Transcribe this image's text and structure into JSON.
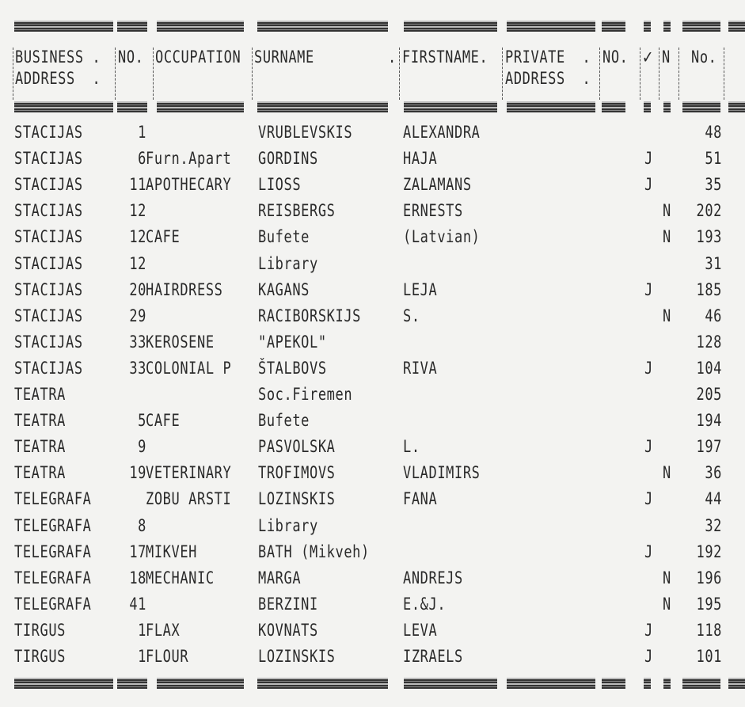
{
  "header": {
    "business_address_1": "BUSINESS .",
    "business_address_2": "ADDRESS  .",
    "no": "NO.",
    "occupation": "OCCUPATION",
    "surname": "SURNAME",
    "surname_dot": ".",
    "firstname": "FIRSTNAME.",
    "private_address_1": "PRIVATE  .",
    "private_address_2": "ADDRESS  .",
    "private_no": "NO.",
    "check_mark": "✓",
    "n": "N",
    "no2": "No."
  },
  "rows": [
    {
      "address": "STACIJAS",
      "no": "1",
      "occupation": "",
      "surname": "VRUBLEVSKIS",
      "firstname": "ALEXANDRA",
      "j": "",
      "n": "",
      "num": "48"
    },
    {
      "address": "STACIJAS",
      "no": "6",
      "occupation": "Furn.Apart",
      "surname": "GORDINS",
      "firstname": "HAJA",
      "j": "J",
      "n": "",
      "num": "51"
    },
    {
      "address": "STACIJAS",
      "no": "11",
      "occupation": "APOTHECARY",
      "surname": "LIOSS",
      "firstname": "ZALAMANS",
      "j": "J",
      "n": "",
      "num": "35"
    },
    {
      "address": "STACIJAS",
      "no": "12",
      "occupation": "",
      "surname": "REISBERGS",
      "firstname": "ERNESTS",
      "j": "",
      "n": "N",
      "num": "202"
    },
    {
      "address": "STACIJAS",
      "no": "12",
      "occupation": "CAFE",
      "surname": "Bufete",
      "firstname": "(Latvian)",
      "j": "",
      "n": "N",
      "num": "193"
    },
    {
      "address": "STACIJAS",
      "no": "12",
      "occupation": "",
      "surname": "Library",
      "firstname": "",
      "j": "",
      "n": "",
      "num": "31"
    },
    {
      "address": "STACIJAS",
      "no": "20",
      "occupation": "HAIRDRESS",
      "surname": "KAGANS",
      "firstname": "LEJA",
      "j": "J",
      "n": "",
      "num": "185"
    },
    {
      "address": "STACIJAS",
      "no": "29",
      "occupation": "",
      "surname": "RACIBORSKIJS",
      "firstname": "S.",
      "j": "",
      "n": "N",
      "num": "46"
    },
    {
      "address": "STACIJAS",
      "no": "33",
      "occupation": "KEROSENE",
      "surname": "\"APEKOL\"",
      "firstname": "",
      "j": "",
      "n": "",
      "num": "128"
    },
    {
      "address": "STACIJAS",
      "no": "33",
      "occupation": "COLONIAL P",
      "surname": "ŠTALBOVS",
      "firstname": "RIVA",
      "j": "J",
      "n": "",
      "num": "104"
    },
    {
      "address": "TEATRA",
      "no": "",
      "occupation": "",
      "surname": "Soc.Firemen",
      "firstname": "",
      "j": "",
      "n": "",
      "num": "205"
    },
    {
      "address": "TEATRA",
      "no": "5",
      "occupation": "CAFE",
      "surname": "Bufete",
      "firstname": "",
      "j": "",
      "n": "",
      "num": "194"
    },
    {
      "address": "TEATRA",
      "no": "9",
      "occupation": "",
      "surname": "PASVOLSKA",
      "firstname": "L.",
      "j": "J",
      "n": "",
      "num": "197"
    },
    {
      "address": "TEATRA",
      "no": "19",
      "occupation": "VETERINARY",
      "surname": "TROFIMOVS",
      "firstname": "VLADIMIRS",
      "j": "",
      "n": "N",
      "num": "36"
    },
    {
      "address": "TELEGRAFA",
      "no": "",
      "occupation": "ZOBU ARSTI",
      "surname": "LOZINSKIS",
      "firstname": "FANA",
      "j": "J",
      "n": "",
      "num": "44"
    },
    {
      "address": "TELEGRAFA",
      "no": "8",
      "occupation": "",
      "surname": "Library",
      "firstname": "",
      "j": "",
      "n": "",
      "num": "32"
    },
    {
      "address": "TELEGRAFA",
      "no": "17",
      "occupation": "MIKVEH",
      "surname": "BATH (Mikveh)",
      "firstname": "",
      "j": "J",
      "n": "",
      "num": "192"
    },
    {
      "address": "TELEGRAFA",
      "no": "18",
      "occupation": "MECHANIC",
      "surname": "MARGA",
      "firstname": "ANDREJS",
      "j": "",
      "n": "N",
      "num": "196"
    },
    {
      "address": "TELEGRAFA",
      "no": "41",
      "occupation": "",
      "surname": "BERZINI",
      "firstname": "E.&J.",
      "j": "",
      "n": "N",
      "num": "195"
    },
    {
      "address": "TIRGUS",
      "no": "1",
      "occupation": "FLAX",
      "surname": "KOVNATS",
      "firstname": "LEVA",
      "j": "J",
      "n": "",
      "num": "118"
    },
    {
      "address": "TIRGUS",
      "no": "1",
      "occupation": "FLOUR",
      "surname": "LOZINSKIS",
      "firstname": "IZRAELS",
      "j": "J",
      "n": "",
      "num": "101"
    }
  ]
}
